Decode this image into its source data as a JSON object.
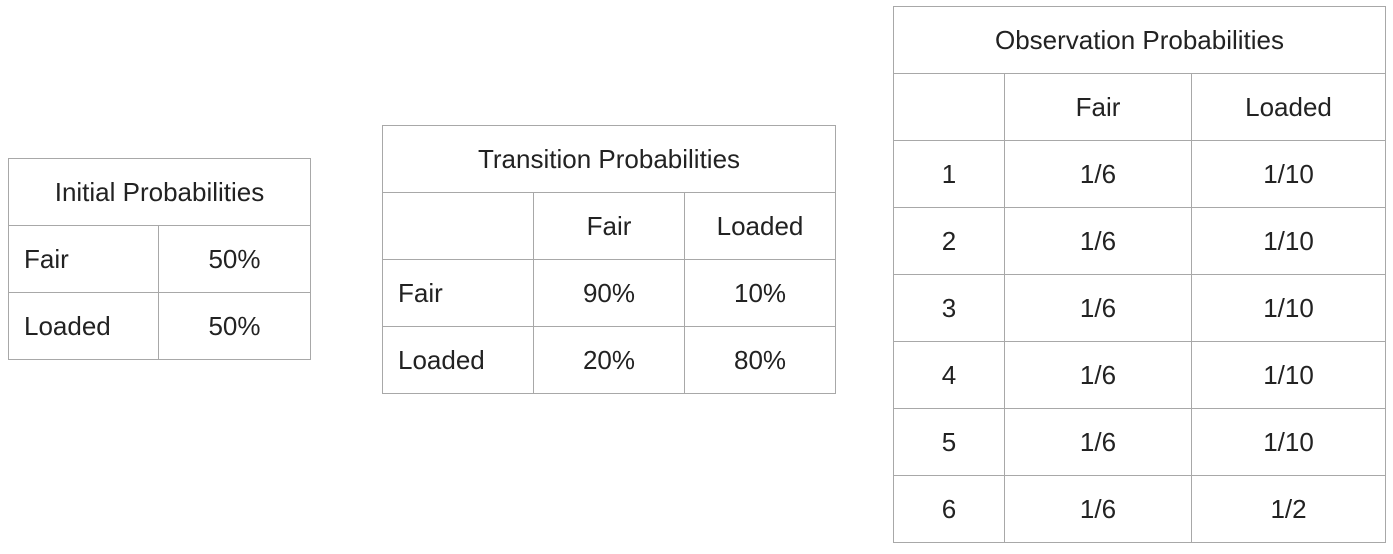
{
  "initial": {
    "title": "Initial Probabilities",
    "rows": [
      {
        "label": "Fair",
        "value": "50%"
      },
      {
        "label": "Loaded",
        "value": "50%"
      }
    ]
  },
  "transition": {
    "title": "Transition Probabilities",
    "columns": [
      "",
      "Fair",
      "Loaded"
    ],
    "rows": [
      {
        "label": "Fair",
        "values": [
          "90%",
          "10%"
        ]
      },
      {
        "label": "Loaded",
        "values": [
          "20%",
          "80%"
        ]
      }
    ]
  },
  "observation": {
    "title": "Observation Probabilities",
    "columns": [
      "",
      "Fair",
      "Loaded"
    ],
    "rows": [
      {
        "label": "1",
        "values": [
          "1/6",
          "1/10"
        ]
      },
      {
        "label": "2",
        "values": [
          "1/6",
          "1/10"
        ]
      },
      {
        "label": "3",
        "values": [
          "1/6",
          "1/10"
        ]
      },
      {
        "label": "4",
        "values": [
          "1/6",
          "1/10"
        ]
      },
      {
        "label": "5",
        "values": [
          "1/6",
          "1/10"
        ]
      },
      {
        "label": "6",
        "values": [
          "1/6",
          "1/2"
        ]
      }
    ]
  }
}
